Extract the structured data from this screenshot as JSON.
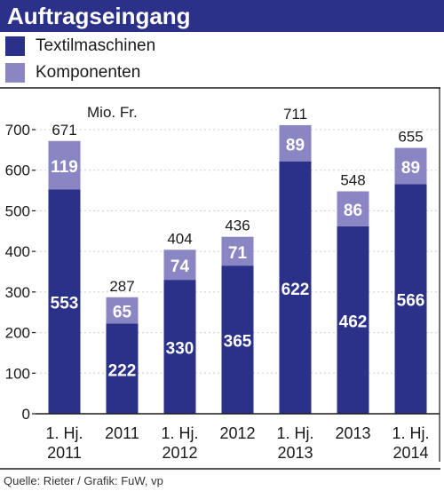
{
  "title": "Auftragseingang",
  "source": "Quelle: Rieter / Grafik: FuW, vp",
  "colors": {
    "title_bg": "#2b3188",
    "textil": "#2b3188",
    "komponenten": "#8a86c4",
    "axis": "#1a1a1a"
  },
  "chart_data": {
    "type": "bar",
    "stacked": true,
    "unit": "Mio. Fr.",
    "ylim": [
      0,
      700
    ],
    "yticks": [
      0,
      100,
      200,
      300,
      400,
      500,
      600,
      700
    ],
    "categories": [
      [
        "1. Hj.",
        "2011"
      ],
      [
        "2011"
      ],
      [
        "1. Hj.",
        "2012"
      ],
      [
        "2012"
      ],
      [
        "1. Hj.",
        "2013"
      ],
      [
        "2013"
      ],
      [
        "1. Hj.",
        "2014"
      ]
    ],
    "series": [
      {
        "name": "Textilmaschinen",
        "values": [
          553,
          222,
          330,
          365,
          622,
          462,
          566
        ]
      },
      {
        "name": "Komponenten",
        "values": [
          119,
          65,
          74,
          71,
          89,
          86,
          89
        ]
      }
    ],
    "totals": [
      671,
      287,
      404,
      436,
      711,
      548,
      655
    ]
  }
}
